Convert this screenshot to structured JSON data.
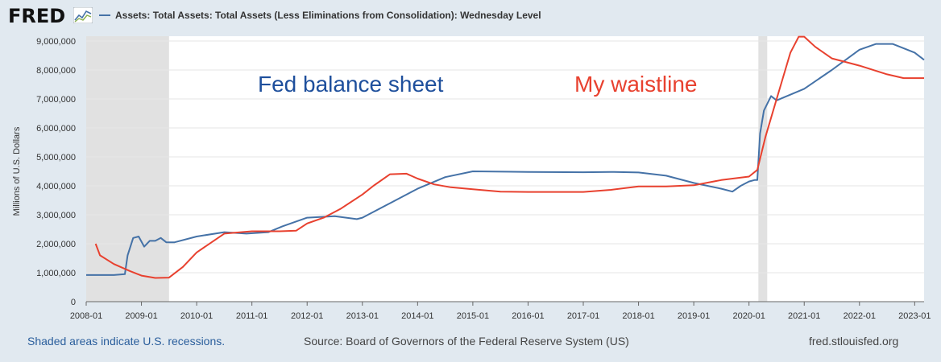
{
  "header": {
    "logo_text": "FRED",
    "legend_label": "Assets: Total Assets: Total Assets (Less Eliminations from Consolidation): Wednesday Level"
  },
  "footer": {
    "recession_note": "Shaded areas indicate U.S. recessions.",
    "source": "Source: Board of Governors of the Federal Reserve System (US)",
    "site": "fred.stlouisfed.org"
  },
  "colors": {
    "fed_line": "#4572a7",
    "waist_line": "#e8412f",
    "recession_shade": "#e1e1e1",
    "background": "#e1e9f0"
  },
  "chart_data": {
    "type": "line",
    "ylabel": "Millions of U.S. Dollars",
    "xlim": [
      2008.0,
      2023.17
    ],
    "ylim": [
      0,
      9000000
    ],
    "yticks": [
      0,
      1000000,
      2000000,
      3000000,
      4000000,
      5000000,
      6000000,
      7000000,
      8000000,
      9000000
    ],
    "ytick_labels": [
      "0",
      "1,000,000",
      "2,000,000",
      "3,000,000",
      "4,000,000",
      "5,000,000",
      "6,000,000",
      "7,000,000",
      "8,000,000",
      "9,000,000"
    ],
    "xticks": [
      2008,
      2009,
      2010,
      2011,
      2012,
      2013,
      2014,
      2015,
      2016,
      2017,
      2018,
      2019,
      2020,
      2021,
      2022,
      2023
    ],
    "xtick_labels": [
      "2008-01",
      "2009-01",
      "2010-01",
      "2011-01",
      "2012-01",
      "2013-01",
      "2014-01",
      "2015-01",
      "2016-01",
      "2017-01",
      "2018-01",
      "2019-01",
      "2020-01",
      "2021-01",
      "2022-01",
      "2023-01"
    ],
    "recessions": [
      [
        2008.0,
        2009.5
      ],
      [
        2020.17,
        2020.33
      ]
    ],
    "grid": true,
    "series": [
      {
        "name": "Assets: Total Assets: Total Assets (Less Eliminations from Consolidation): Wednesday Level",
        "color": "#4572a7",
        "x": [
          2008.0,
          2008.5,
          2008.7,
          2008.75,
          2008.85,
          2008.95,
          2009.05,
          2009.15,
          2009.25,
          2009.35,
          2009.45,
          2009.6,
          2010.0,
          2010.5,
          2010.9,
          2011.3,
          2011.55,
          2012.0,
          2012.5,
          2012.9,
          2013.0,
          2013.5,
          2014.0,
          2014.5,
          2015.0,
          2016.0,
          2017.0,
          2017.5,
          2018.0,
          2018.5,
          2019.0,
          2019.5,
          2019.7,
          2019.85,
          2020.0,
          2020.1,
          2020.15,
          2020.2,
          2020.27,
          2020.4,
          2020.5,
          2021.0,
          2021.5,
          2022.0,
          2022.3,
          2022.6,
          2023.0,
          2023.17
        ],
        "y": [
          920000,
          920000,
          950000,
          1600000,
          2200000,
          2250000,
          1900000,
          2100000,
          2100000,
          2200000,
          2050000,
          2050000,
          2250000,
          2400000,
          2350000,
          2400000,
          2600000,
          2900000,
          2950000,
          2850000,
          2900000,
          3400000,
          3900000,
          4300000,
          4500000,
          4480000,
          4470000,
          4480000,
          4460000,
          4350000,
          4100000,
          3900000,
          3800000,
          4000000,
          4150000,
          4200000,
          4200000,
          5800000,
          6600000,
          7100000,
          6950000,
          7350000,
          8000000,
          8700000,
          8900000,
          8900000,
          8600000,
          8350000
        ]
      },
      {
        "color": "#e8412f",
        "x": [
          2008.17,
          2008.25,
          2008.5,
          2008.8,
          2009.0,
          2009.25,
          2009.5,
          2009.75,
          2010.0,
          2010.5,
          2011.0,
          2011.5,
          2011.8,
          2012.0,
          2012.3,
          2012.6,
          2013.0,
          2013.2,
          2013.5,
          2013.8,
          2014.0,
          2014.3,
          2014.6,
          2015.0,
          2015.5,
          2016.0,
          2016.5,
          2017.0,
          2017.5,
          2018.0,
          2018.5,
          2019.0,
          2019.5,
          2020.0,
          2020.15,
          2020.3,
          2020.5,
          2020.75,
          2020.9,
          2021.0,
          2021.2,
          2021.5,
          2021.8,
          2022.0,
          2022.5,
          2022.8,
          2023.0,
          2023.17
        ],
        "y": [
          2000000,
          1600000,
          1300000,
          1050000,
          900000,
          820000,
          830000,
          1200000,
          1700000,
          2350000,
          2430000,
          2430000,
          2450000,
          2700000,
          2900000,
          3200000,
          3700000,
          4000000,
          4400000,
          4420000,
          4250000,
          4050000,
          3950000,
          3880000,
          3800000,
          3790000,
          3790000,
          3790000,
          3860000,
          3980000,
          3980000,
          4020000,
          4200000,
          4320000,
          4550000,
          5700000,
          7000000,
          8600000,
          9150000,
          9150000,
          8800000,
          8400000,
          8250000,
          8150000,
          7850000,
          7720000,
          7720000,
          7720000
        ]
      }
    ],
    "annotations": [
      {
        "text": "Fed balance sheet",
        "color": "#1e4f9c"
      },
      {
        "text": "My waistline",
        "color": "#e8412f"
      }
    ]
  }
}
